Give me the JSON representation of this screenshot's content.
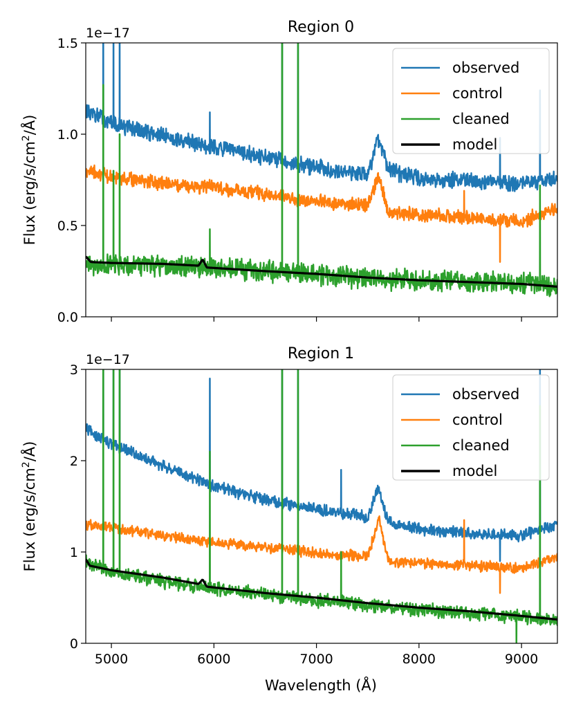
{
  "chart_data": [
    {
      "type": "line",
      "title": "Region 0",
      "xlabel": "Wavelength (Å)",
      "ylabel": "Flux (erg/s/cm²/Å)",
      "ylabel_parts": [
        "Flux (erg/s/cm",
        "2",
        "/Å)"
      ],
      "offset_text": "1e−17",
      "xlim": [
        4750,
        9350
      ],
      "ylim": [
        0.0,
        1.5
      ],
      "xticks": [
        5000,
        6000,
        7000,
        8000,
        9000
      ],
      "xtick_labels": [
        "",
        "",
        "",
        "",
        ""
      ],
      "yticks": [
        0.0,
        0.5,
        1.0,
        1.5
      ],
      "ytick_labels": [
        "0.0",
        "0.5",
        "1.0",
        "1.5"
      ],
      "grid": false,
      "legend_position": "top-right",
      "series": [
        {
          "name": "observed",
          "color": "#1f77b4",
          "continuum": [
            [
              4750,
              1.13
            ],
            [
              5000,
              1.06
            ],
            [
              5500,
              0.99
            ],
            [
              6000,
              0.93
            ],
            [
              6500,
              0.87
            ],
            [
              7000,
              0.82
            ],
            [
              7500,
              0.78
            ],
            [
              7600,
              0.98
            ],
            [
              7700,
              0.8
            ],
            [
              8000,
              0.76
            ],
            [
              8500,
              0.74
            ],
            [
              9000,
              0.73
            ],
            [
              9350,
              0.76
            ]
          ],
          "noise": 0.035,
          "spikes": [
            [
              4920,
              1.5
            ],
            [
              5020,
              1.5
            ],
            [
              5080,
              1.5
            ],
            [
              5960,
              1.12
            ],
            [
              6665,
              1.5
            ],
            [
              6820,
              1.5
            ],
            [
              9180,
              1.24
            ],
            [
              8790,
              0.98
            ]
          ]
        },
        {
          "name": "control",
          "color": "#ff7f0e",
          "continuum": [
            [
              4750,
              0.8
            ],
            [
              5000,
              0.77
            ],
            [
              5500,
              0.73
            ],
            [
              6000,
              0.71
            ],
            [
              6500,
              0.67
            ],
            [
              7000,
              0.63
            ],
            [
              7500,
              0.61
            ],
            [
              7610,
              0.78
            ],
            [
              7700,
              0.57
            ],
            [
              8000,
              0.56
            ],
            [
              8500,
              0.54
            ],
            [
              9000,
              0.52
            ],
            [
              9350,
              0.6
            ]
          ],
          "noise": 0.03,
          "spikes": [
            [
              8790,
              0.3
            ],
            [
              8440,
              0.69
            ]
          ]
        },
        {
          "name": "cleaned",
          "color": "#2ca02c",
          "continuum": [
            [
              4750,
              0.29
            ],
            [
              5000,
              0.29
            ],
            [
              5500,
              0.28
            ],
            [
              6000,
              0.27
            ],
            [
              6500,
              0.25
            ],
            [
              7000,
              0.23
            ],
            [
              7500,
              0.21
            ],
            [
              8000,
              0.2
            ],
            [
              8500,
              0.19
            ],
            [
              9000,
              0.18
            ],
            [
              9350,
              0.17
            ]
          ],
          "noise": 0.045,
          "spikes": [
            [
              4920,
              1.27
            ],
            [
              5020,
              0.8
            ],
            [
              5080,
              1.0
            ],
            [
              5960,
              0.48
            ],
            [
              6665,
              1.5
            ],
            [
              6820,
              1.5
            ],
            [
              9180,
              0.72
            ]
          ]
        },
        {
          "name": "model",
          "color": "#000000",
          "continuum": [
            [
              4750,
              0.33
            ],
            [
              4800,
              0.3
            ],
            [
              5000,
              0.295
            ],
            [
              5500,
              0.29
            ],
            [
              5850,
              0.28
            ],
            [
              5890,
              0.315
            ],
            [
              5930,
              0.27
            ],
            [
              6500,
              0.25
            ],
            [
              7000,
              0.235
            ],
            [
              7500,
              0.215
            ],
            [
              8000,
              0.2
            ],
            [
              8500,
              0.19
            ],
            [
              9000,
              0.18
            ],
            [
              9350,
              0.165
            ]
          ],
          "noise": 0,
          "spikes": []
        }
      ]
    },
    {
      "type": "line",
      "title": "Region 1",
      "xlabel": "Wavelength (Å)",
      "ylabel": "Flux (erg/s/cm²/Å)",
      "ylabel_parts": [
        "Flux (erg/s/cm",
        "2",
        "/Å)"
      ],
      "offset_text": "1e−17",
      "xlim": [
        4750,
        9350
      ],
      "ylim": [
        0,
        3
      ],
      "xticks": [
        5000,
        6000,
        7000,
        8000,
        9000
      ],
      "xtick_labels": [
        "5000",
        "6000",
        "7000",
        "8000",
        "9000"
      ],
      "yticks": [
        0,
        1,
        2,
        3
      ],
      "ytick_labels": [
        "0",
        "1",
        "2",
        "3"
      ],
      "grid": false,
      "legend_position": "top-right",
      "series": [
        {
          "name": "observed",
          "color": "#1f77b4",
          "continuum": [
            [
              4750,
              2.35
            ],
            [
              5000,
              2.18
            ],
            [
              5500,
              1.95
            ],
            [
              6000,
              1.72
            ],
            [
              6500,
              1.57
            ],
            [
              7000,
              1.47
            ],
            [
              7500,
              1.38
            ],
            [
              7600,
              1.7
            ],
            [
              7700,
              1.33
            ],
            [
              8000,
              1.25
            ],
            [
              8500,
              1.2
            ],
            [
              9000,
              1.18
            ],
            [
              9350,
              1.3
            ]
          ],
          "noise": 0.05,
          "spikes": [
            [
              4920,
              3
            ],
            [
              5020,
              3
            ],
            [
              5080,
              3
            ],
            [
              5960,
              2.9
            ],
            [
              6665,
              3
            ],
            [
              6820,
              3
            ],
            [
              7240,
              1.9
            ],
            [
              9180,
              3
            ],
            [
              8790,
              0.9
            ]
          ]
        },
        {
          "name": "control",
          "color": "#ff7f0e",
          "continuum": [
            [
              4750,
              1.3
            ],
            [
              5000,
              1.27
            ],
            [
              5500,
              1.18
            ],
            [
              6000,
              1.1
            ],
            [
              6500,
              1.05
            ],
            [
              7000,
              0.99
            ],
            [
              7500,
              0.95
            ],
            [
              7610,
              1.35
            ],
            [
              7700,
              0.9
            ],
            [
              8000,
              0.88
            ],
            [
              8500,
              0.85
            ],
            [
              9000,
              0.82
            ],
            [
              9350,
              0.95
            ]
          ],
          "noise": 0.045,
          "spikes": [
            [
              8790,
              0.55
            ],
            [
              8440,
              1.35
            ]
          ]
        },
        {
          "name": "cleaned",
          "color": "#2ca02c",
          "continuum": [
            [
              4750,
              0.9
            ],
            [
              5000,
              0.78
            ],
            [
              5500,
              0.68
            ],
            [
              6000,
              0.6
            ],
            [
              6500,
              0.53
            ],
            [
              7000,
              0.47
            ],
            [
              7500,
              0.42
            ],
            [
              8000,
              0.37
            ],
            [
              8500,
              0.33
            ],
            [
              9000,
              0.29
            ],
            [
              9350,
              0.25
            ]
          ],
          "noise": 0.06,
          "spikes": [
            [
              4920,
              3
            ],
            [
              5020,
              3
            ],
            [
              5080,
              3
            ],
            [
              5960,
              2.1
            ],
            [
              6665,
              3
            ],
            [
              6820,
              3
            ],
            [
              7240,
              1.0
            ],
            [
              9180,
              2.6
            ],
            [
              8950,
              0.0
            ]
          ]
        },
        {
          "name": "model",
          "color": "#000000",
          "continuum": [
            [
              4750,
              0.92
            ],
            [
              4790,
              0.85
            ],
            [
              5000,
              0.8
            ],
            [
              5500,
              0.72
            ],
            [
              5850,
              0.65
            ],
            [
              5890,
              0.7
            ],
            [
              5930,
              0.62
            ],
            [
              6500,
              0.55
            ],
            [
              7000,
              0.5
            ],
            [
              7500,
              0.44
            ],
            [
              8000,
              0.39
            ],
            [
              8500,
              0.35
            ],
            [
              9000,
              0.3
            ],
            [
              9350,
              0.26
            ]
          ],
          "noise": 0,
          "spikes": []
        }
      ]
    }
  ]
}
